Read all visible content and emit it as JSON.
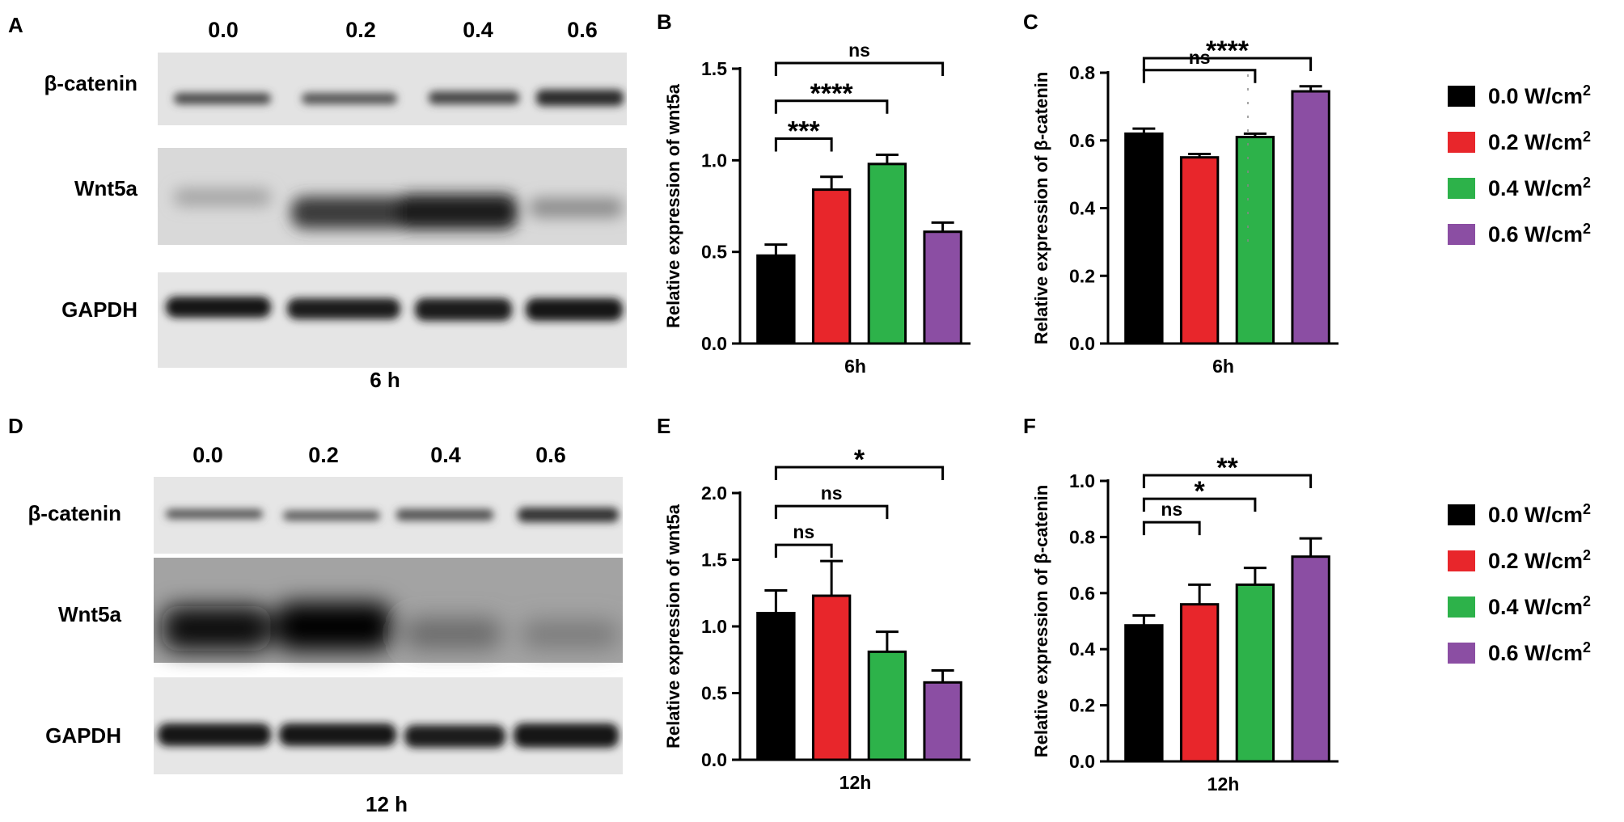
{
  "panels": {
    "A": "A",
    "B": "B",
    "C": "C",
    "D": "D",
    "E": "E",
    "F": "F"
  },
  "blots": [
    {
      "panel": "A",
      "lanes": [
        "0.0",
        "0.2",
        "0.4",
        "0.6"
      ],
      "rows": [
        "β-catenin",
        "Wnt5a",
        "GAPDH"
      ],
      "time": "6 h"
    },
    {
      "panel": "D",
      "lanes": [
        "0.0",
        "0.2",
        "0.4",
        "0.6"
      ],
      "rows": [
        "β-catenin",
        "Wnt5a",
        "GAPDH"
      ],
      "time": "12 h"
    }
  ],
  "legend": [
    {
      "base": "0.0 W/cm",
      "sup": "2",
      "color": "#000000"
    },
    {
      "base": "0.2 W/cm",
      "sup": "2",
      "color": "#e8262b"
    },
    {
      "base": "0.4 W/cm",
      "sup": "2",
      "color": "#2db24a"
    },
    {
      "base": "0.6 W/cm",
      "sup": "2",
      "color": "#8b4ea3"
    }
  ],
  "chart_data": [
    {
      "panel": "B",
      "type": "bar",
      "xlabel": "6h",
      "ylabel": "Relative expression of wnt5a",
      "ylim": [
        0,
        1.5
      ],
      "yticks": [
        "0.0",
        "0.5",
        "1.0",
        "1.5"
      ],
      "categories": [
        "0.0 W/cm2",
        "0.2 W/cm2",
        "0.4 W/cm2",
        "0.6 W/cm2"
      ],
      "values": [
        0.48,
        0.84,
        0.98,
        0.61
      ],
      "errors": [
        0.06,
        0.07,
        0.05,
        0.05
      ],
      "colors": [
        "#000000",
        "#e8262b",
        "#2db24a",
        "#8b4ea3"
      ],
      "annotations": [
        {
          "from": 0,
          "to": 3,
          "label": "ns"
        },
        {
          "from": 0,
          "to": 2,
          "label": "****"
        },
        {
          "from": 0,
          "to": 1,
          "label": "***"
        }
      ]
    },
    {
      "panel": "C",
      "type": "bar",
      "xlabel": "6h",
      "ylabel": "Relative expression of β-catenin",
      "ylim": [
        0,
        0.8
      ],
      "yticks": [
        "0.0",
        "0.2",
        "0.4",
        "0.6",
        "0.8"
      ],
      "categories": [
        "0.0 W/cm2",
        "0.2 W/cm2",
        "0.4 W/cm2",
        "0.6 W/cm2"
      ],
      "values": [
        0.62,
        0.55,
        0.61,
        0.745
      ],
      "errors": [
        0.015,
        0.01,
        0.01,
        0.015
      ],
      "colors": [
        "#000000",
        "#e8262b",
        "#2db24a",
        "#8b4ea3"
      ],
      "annotations": [
        {
          "from": 0,
          "to": 3,
          "label": "****"
        },
        {
          "from": 0,
          "to": 2,
          "label": "ns"
        }
      ]
    },
    {
      "panel": "E",
      "type": "bar",
      "xlabel": "12h",
      "ylabel": "Relative expression of wnt5a",
      "ylim": [
        0,
        2.0
      ],
      "yticks": [
        "0.0",
        "0.5",
        "1.0",
        "1.5",
        "2.0"
      ],
      "categories": [
        "0.0 W/cm2",
        "0.2 W/cm2",
        "0.4 W/cm2",
        "0.6 W/cm2"
      ],
      "values": [
        1.1,
        1.23,
        0.81,
        0.58
      ],
      "errors": [
        0.17,
        0.26,
        0.15,
        0.09
      ],
      "colors": [
        "#000000",
        "#e8262b",
        "#2db24a",
        "#8b4ea3"
      ],
      "annotations": [
        {
          "from": 0,
          "to": 3,
          "label": "*"
        },
        {
          "from": 0,
          "to": 2,
          "label": "ns"
        },
        {
          "from": 0,
          "to": 1,
          "label": "ns"
        }
      ]
    },
    {
      "panel": "F",
      "type": "bar",
      "xlabel": "12h",
      "ylabel": "Relative expression of β-catenin",
      "ylim": [
        0,
        1.0
      ],
      "yticks": [
        "0.0",
        "0.2",
        "0.4",
        "0.6",
        "0.8",
        "1.0"
      ],
      "categories": [
        "0.0 W/cm2",
        "0.2 W/cm2",
        "0.4 W/cm2",
        "0.6 W/cm2"
      ],
      "values": [
        0.485,
        0.56,
        0.63,
        0.73
      ],
      "errors": [
        0.035,
        0.07,
        0.06,
        0.065
      ],
      "colors": [
        "#000000",
        "#e8262b",
        "#2db24a",
        "#8b4ea3"
      ],
      "annotations": [
        {
          "from": 0,
          "to": 3,
          "label": "**"
        },
        {
          "from": 0,
          "to": 2,
          "label": "*"
        },
        {
          "from": 0,
          "to": 1,
          "label": "ns"
        }
      ]
    }
  ]
}
